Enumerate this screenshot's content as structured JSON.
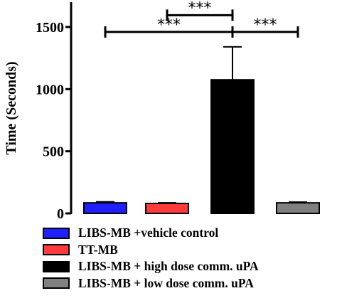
{
  "chart_data": {
    "type": "bar",
    "ylabel": "Time (Seconds)",
    "ylim": [
      0,
      1700
    ],
    "yticks": [
      0,
      500,
      1000,
      1500
    ],
    "categories": [
      "LIBS-MB +vehicle control",
      "TT-MB",
      "LIBS-MB + high dose comm. uPA",
      "LIBS-MB + low dose comm. uPA"
    ],
    "values": [
      85,
      80,
      1075,
      85
    ],
    "errors": [
      8,
      5,
      265,
      6
    ],
    "colors": [
      "#1f1fff",
      "#ff3b3b",
      "#000000",
      "#808080"
    ],
    "legend_position": "bottom",
    "significance": [
      {
        "from": 2,
        "to": 1,
        "y": 1595,
        "label": "***"
      },
      {
        "from": 0,
        "to": 2,
        "y": 1460,
        "label": "***"
      },
      {
        "from": 2,
        "to": 3,
        "y": 1460,
        "label": "***"
      }
    ]
  }
}
